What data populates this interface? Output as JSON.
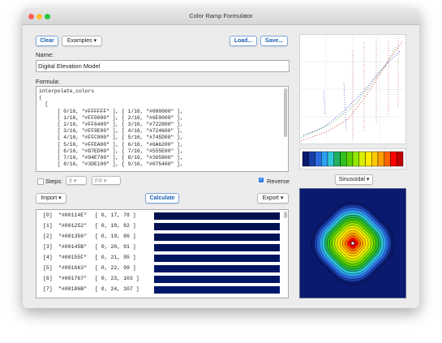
{
  "window": {
    "title": "Color Ramp Formulator"
  },
  "toolbar": {
    "clear": "Clear",
    "examples": "Examples",
    "load": "Load...",
    "save": "Save..."
  },
  "name": {
    "label": "Name:",
    "value": "Digital Elevation Model"
  },
  "formula": {
    "label": "Formula:",
    "lines": [
      "interpolate_colors",
      "(",
      "  [",
      "      [ 0/16, \"#FFFFFF\" ], [ 1/16, \"#000000\" ],",
      "      [ 1/16, \"#FF0000\" ], [ 2/16, \"#6E0000\" ],",
      "      [ 2/16, \"#FF6400\" ], [ 3/16, \"#722800\" ],",
      "      [ 3/16, \"#FF9E00\" ], [ 4/16, \"#724600\" ],",
      "      [ 4/16, \"#FFC800\" ], [ 5/16, \"#745D00\" ],",
      "      [ 5/16, \"#FFEA00\" ], [ 6/16, \"#6A6200\" ],",
      "      [ 6/16, \"#D7ED00\" ], [ 7/16, \"#555E00\" ],",
      "      [ 7/16, \"#94E700\" ], [ 8/16, \"#365800\" ],",
      "      [ 8/16, \"#3DE100\" ], [ 9/16, \"#075400\" ],"
    ]
  },
  "options": {
    "steps_label": "Steps:",
    "steps_value": "8",
    "fill": "Fill",
    "reverse": "Reverse"
  },
  "actions": {
    "import": "Import",
    "calculate": "Calculate",
    "export": "Export"
  },
  "results": [
    [
      "[0]",
      "\"#00114E\"",
      "[ 0, 17, 78 ]"
    ],
    [
      "[1]",
      "\"#001252\"",
      "[ 0, 18, 82 ]"
    ],
    [
      "[2]",
      "\"#001356\"",
      "[ 0, 19, 86 ]"
    ],
    [
      "[3]",
      "\"#00145B\"",
      "[ 0, 20, 91 ]"
    ],
    [
      "[4]",
      "\"#00155F\"",
      "[ 0, 21, 95 ]"
    ],
    [
      "[5]",
      "\"#001663\"",
      "[ 0, 22, 99 ]"
    ],
    [
      "[6]",
      "\"#001767\"",
      "[ 0, 23, 103 ]"
    ],
    [
      "[7]",
      "\"#00186B\"",
      "[ 0, 24, 107 ]"
    ]
  ],
  "preview": {
    "mode": "Sinusoidal"
  }
}
